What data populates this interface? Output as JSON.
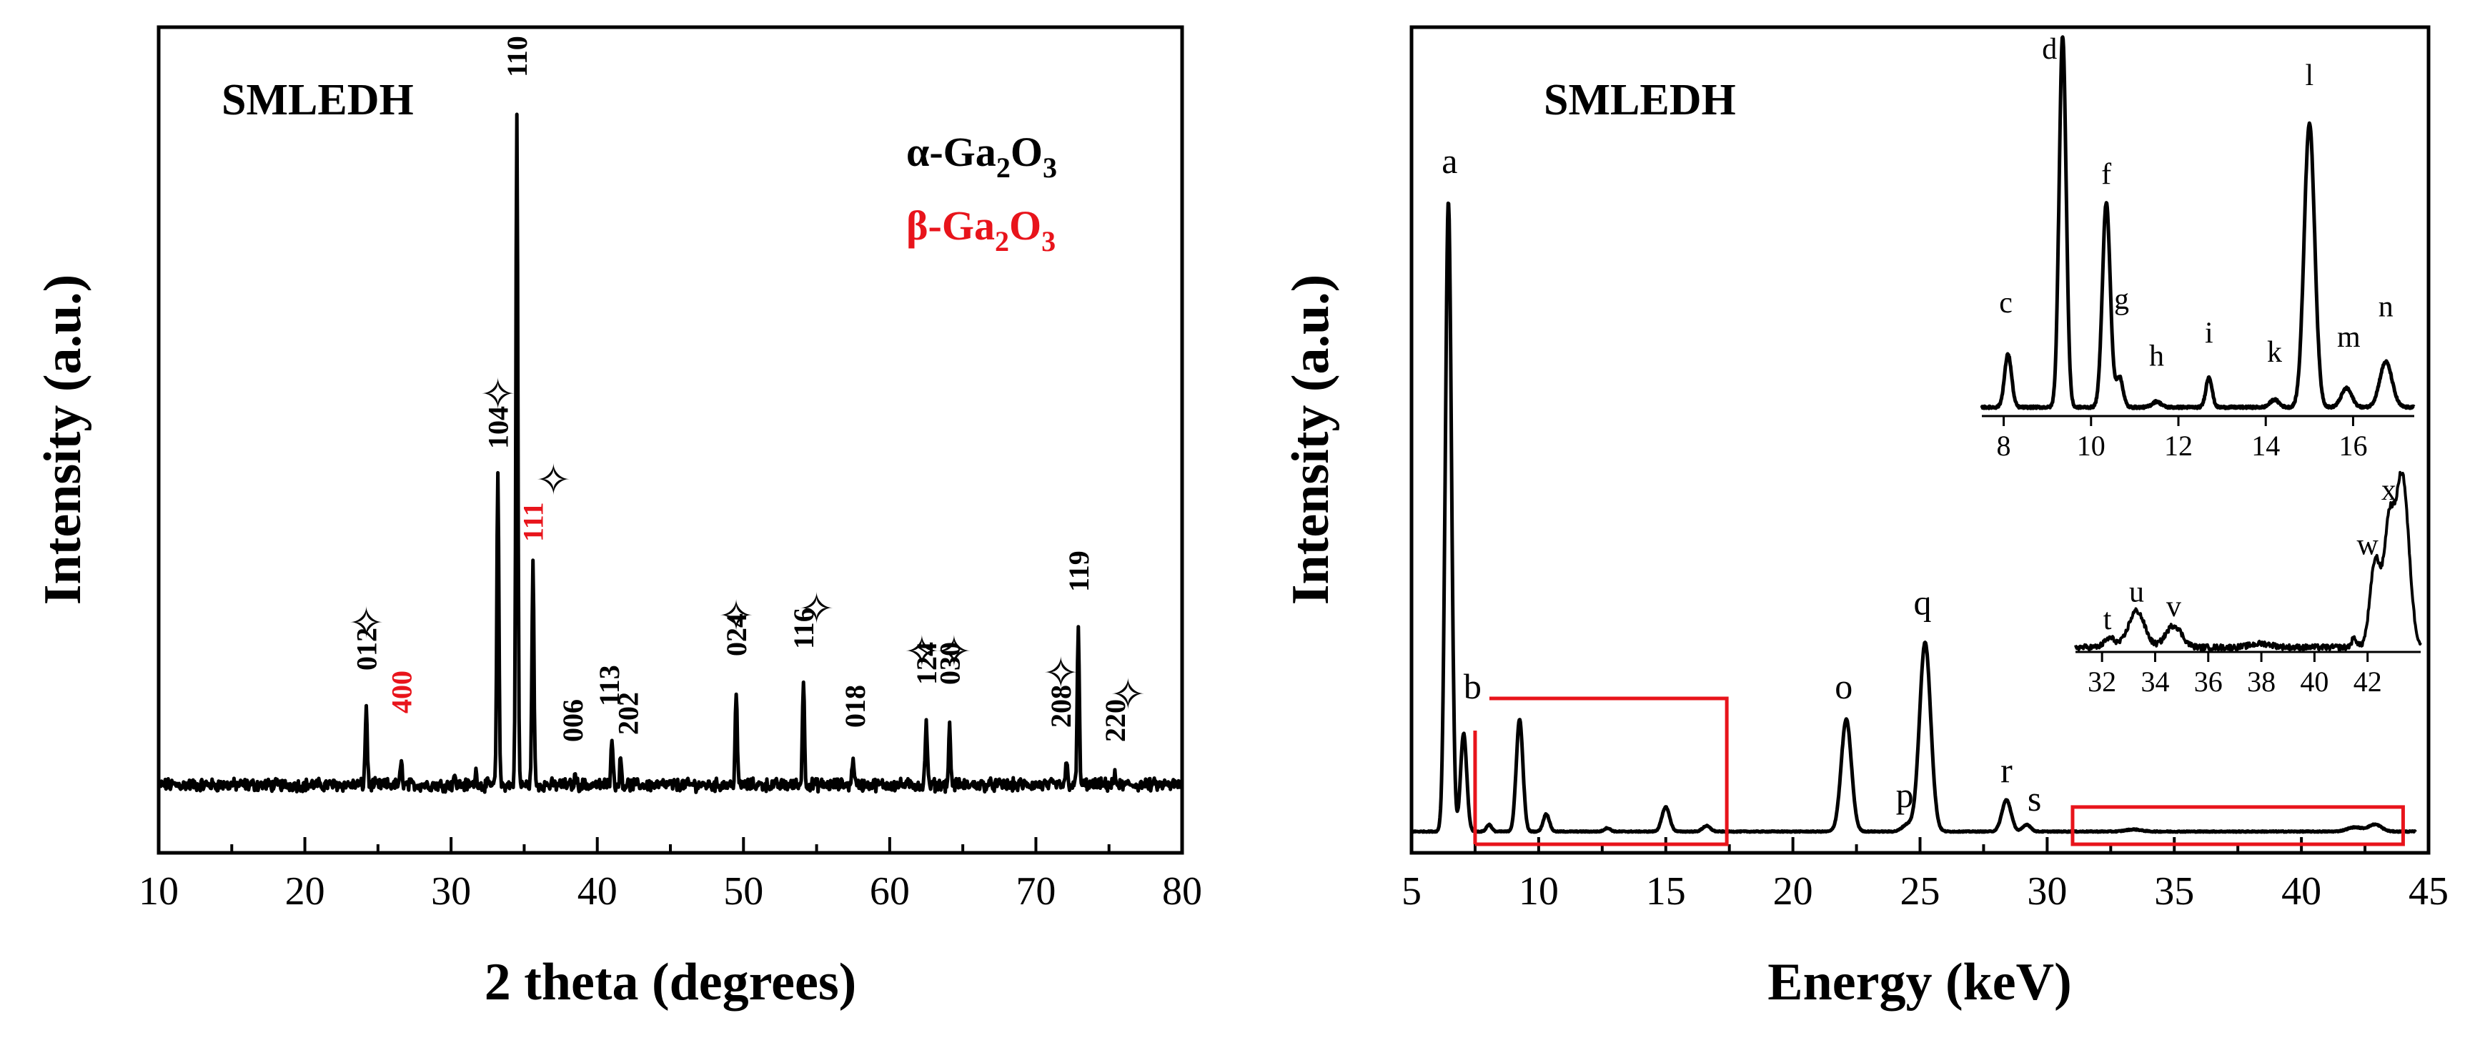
{
  "chart_data": [
    {
      "type": "line",
      "panel": "left",
      "title": "SMLEDH",
      "xlabel": "2 theta (degrees)",
      "ylabel": "Intensity (a.u.)",
      "xlim": [
        10,
        80
      ],
      "ylim": [
        0,
        1
      ],
      "xticks": [
        10,
        20,
        30,
        40,
        50,
        60,
        70,
        80
      ],
      "legend": {
        "position": "top-right",
        "entries": [
          {
            "name": "α-Ga2O3",
            "base": "α-Ga",
            "sub1": "2",
            "mid": "O",
            "sub2": "3",
            "color": "#000000"
          },
          {
            "name": "β-Ga2O3",
            "base": "β-Ga",
            "sub1": "2",
            "mid": "O",
            "sub2": "3",
            "color": "#e8141b"
          }
        ]
      },
      "baseline": 0.06,
      "noise": 0.007,
      "peaks": [
        {
          "x": 24.2,
          "h": 0.11
        },
        {
          "x": 26.6,
          "h": 0.03
        },
        {
          "x": 30.2,
          "h": 0.012
        },
        {
          "x": 31.7,
          "h": 0.018
        },
        {
          "x": 33.2,
          "h": 0.44
        },
        {
          "x": 34.5,
          "h": 0.94
        },
        {
          "x": 35.6,
          "h": 0.31
        },
        {
          "x": 38.5,
          "h": 0.012
        },
        {
          "x": 41.0,
          "h": 0.07
        },
        {
          "x": 41.6,
          "h": 0.035
        },
        {
          "x": 49.5,
          "h": 0.13
        },
        {
          "x": 54.1,
          "h": 0.145
        },
        {
          "x": 57.5,
          "h": 0.04
        },
        {
          "x": 62.5,
          "h": 0.09
        },
        {
          "x": 64.1,
          "h": 0.08
        },
        {
          "x": 72.1,
          "h": 0.03
        },
        {
          "x": 72.9,
          "h": 0.22
        },
        {
          "x": 75.4,
          "h": 0.012
        }
      ],
      "peak_labels": [
        {
          "text": "012",
          "x": 24.2,
          "y": 0.22,
          "color": "#000000"
        },
        {
          "text": "400",
          "x": 26.6,
          "y": 0.16,
          "color": "#e8141b"
        },
        {
          "text": "104",
          "x": 33.2,
          "y": 0.53,
          "color": "#000000"
        },
        {
          "text": "110",
          "x": 34.5,
          "y": 1.05,
          "color": "#000000"
        },
        {
          "text": "111",
          "x": 35.6,
          "y": 0.4,
          "color": "#e8141b"
        },
        {
          "text": "006",
          "x": 38.3,
          "y": 0.12,
          "color": "#000000"
        },
        {
          "text": "113",
          "x": 40.8,
          "y": 0.17,
          "color": "#000000"
        },
        {
          "text": "202",
          "x": 42.1,
          "y": 0.13,
          "color": "#000000"
        },
        {
          "text": "024",
          "x": 49.5,
          "y": 0.24,
          "color": "#000000"
        },
        {
          "text": "116",
          "x": 54.1,
          "y": 0.25,
          "color": "#000000"
        },
        {
          "text": "018",
          "x": 57.6,
          "y": 0.14,
          "color": "#000000"
        },
        {
          "text": "124",
          "x": 62.5,
          "y": 0.2,
          "color": "#000000"
        },
        {
          "text": "030",
          "x": 64.1,
          "y": 0.2,
          "color": "#000000"
        },
        {
          "text": "208",
          "x": 71.7,
          "y": 0.14,
          "color": "#000000"
        },
        {
          "text": "119",
          "x": 72.9,
          "y": 0.33,
          "color": "#000000"
        },
        {
          "text": "220",
          "x": 75.4,
          "y": 0.12,
          "color": "#000000"
        }
      ],
      "star_markers": [
        {
          "x": 24.2,
          "y": 0.28
        },
        {
          "x": 33.2,
          "y": 0.6
        },
        {
          "x": 37.0,
          "y": 0.48
        },
        {
          "x": 49.5,
          "y": 0.29
        },
        {
          "x": 55.0,
          "y": 0.3
        },
        {
          "x": 62.2,
          "y": 0.24
        },
        {
          "x": 64.4,
          "y": 0.24
        },
        {
          "x": 71.7,
          "y": 0.21
        },
        {
          "x": 76.3,
          "y": 0.18
        }
      ]
    },
    {
      "type": "line",
      "panel": "right",
      "title": "SMLEDH",
      "xlabel": "Energy (keV)",
      "ylabel": "Intensity (a.u.)",
      "xlim": [
        5,
        45
      ],
      "ylim": [
        0,
        1
      ],
      "xticks": [
        5,
        10,
        15,
        20,
        25,
        30,
        35,
        40,
        45
      ],
      "baseline": 0.01,
      "noise": 0.0015,
      "peaks": [
        {
          "x": 6.45,
          "h": 0.9,
          "w": 0.12
        },
        {
          "x": 7.05,
          "h": 0.14,
          "w": 0.12
        },
        {
          "x": 8.05,
          "h": 0.01,
          "w": 0.1
        },
        {
          "x": 9.25,
          "h": 0.16,
          "w": 0.13
        },
        {
          "x": 10.3,
          "h": 0.025,
          "w": 0.12
        },
        {
          "x": 12.7,
          "h": 0.005,
          "w": 0.12
        },
        {
          "x": 15.0,
          "h": 0.035,
          "w": 0.15
        },
        {
          "x": 16.6,
          "h": 0.008,
          "w": 0.15
        },
        {
          "x": 22.1,
          "h": 0.16,
          "w": 0.2
        },
        {
          "x": 24.5,
          "h": 0.01,
          "w": 0.2
        },
        {
          "x": 25.2,
          "h": 0.27,
          "w": 0.22
        },
        {
          "x": 28.4,
          "h": 0.045,
          "w": 0.18
        },
        {
          "x": 29.2,
          "h": 0.01,
          "w": 0.15
        },
        {
          "x": 33.4,
          "h": 0.003,
          "w": 0.3
        },
        {
          "x": 42.1,
          "h": 0.006,
          "w": 0.3
        },
        {
          "x": 42.9,
          "h": 0.01,
          "w": 0.25
        }
      ],
      "peak_labels": [
        {
          "text": "a",
          "x": 6.5,
          "y": 0.95
        },
        {
          "text": "b",
          "x": 7.4,
          "y": 0.2
        },
        {
          "text": "o",
          "x": 22.0,
          "y": 0.2
        },
        {
          "text": "p",
          "x": 24.4,
          "y": 0.045
        },
        {
          "text": "q",
          "x": 25.1,
          "y": 0.32
        },
        {
          "text": "r",
          "x": 28.4,
          "y": 0.08
        },
        {
          "text": "s",
          "x": 29.5,
          "y": 0.04
        }
      ],
      "zoom_boxes": [
        {
          "x0": 7.5,
          "x1": 17.4,
          "y0": 0.0,
          "y1": 0.2
        },
        {
          "x0": 31.0,
          "x1": 44.0,
          "y0": 0.0,
          "y1": 0.045
        }
      ],
      "insets": [
        {
          "type": "line",
          "xlim": [
            7.5,
            17.4
          ],
          "xticks": [
            8,
            10,
            12,
            14,
            16
          ],
          "peaks": [
            {
              "x": 8.1,
              "h": 0.14,
              "w": 0.08
            },
            {
              "x": 9.35,
              "h": 0.98,
              "w": 0.08
            },
            {
              "x": 10.35,
              "h": 0.54,
              "w": 0.09
            },
            {
              "x": 10.65,
              "h": 0.08,
              "w": 0.08
            },
            {
              "x": 11.5,
              "h": 0.015,
              "w": 0.1
            },
            {
              "x": 12.7,
              "h": 0.08,
              "w": 0.07
            },
            {
              "x": 14.2,
              "h": 0.02,
              "w": 0.1
            },
            {
              "x": 15.0,
              "h": 0.75,
              "w": 0.12
            },
            {
              "x": 15.85,
              "h": 0.05,
              "w": 0.12
            },
            {
              "x": 16.75,
              "h": 0.12,
              "w": 0.14
            }
          ],
          "peak_labels": [
            {
              "text": "c",
              "x": 8.05,
              "y": 0.26
            },
            {
              "text": "d",
              "x": 9.05,
              "y": 0.93
            },
            {
              "text": "f",
              "x": 10.35,
              "y": 0.6
            },
            {
              "text": "g",
              "x": 10.7,
              "y": 0.27
            },
            {
              "text": "h",
              "x": 11.5,
              "y": 0.12
            },
            {
              "text": "i",
              "x": 12.7,
              "y": 0.18
            },
            {
              "text": "k",
              "x": 14.2,
              "y": 0.13
            },
            {
              "text": "l",
              "x": 15.0,
              "y": 0.86
            },
            {
              "text": "m",
              "x": 15.9,
              "y": 0.17
            },
            {
              "text": "n",
              "x": 16.75,
              "y": 0.25
            }
          ]
        },
        {
          "type": "line",
          "xlim": [
            31.0,
            44.0
          ],
          "xticks": [
            32,
            34,
            36,
            38,
            40,
            42
          ],
          "peaks": [
            {
              "x": 32.3,
              "h": 0.05,
              "w": 0.2
            },
            {
              "x": 33.3,
              "h": 0.2,
              "w": 0.3
            },
            {
              "x": 34.7,
              "h": 0.12,
              "w": 0.3
            },
            {
              "x": 38.0,
              "h": 0.02,
              "w": 0.4
            },
            {
              "x": 41.5,
              "h": 0.05,
              "w": 0.1
            },
            {
              "x": 42.3,
              "h": 0.48,
              "w": 0.2
            },
            {
              "x": 42.8,
              "h": 0.6,
              "w": 0.18
            },
            {
              "x": 43.3,
              "h": 0.95,
              "w": 0.25
            }
          ],
          "peak_labels": [
            {
              "text": "t",
              "x": 32.2,
              "y": 0.11
            },
            {
              "text": "u",
              "x": 33.3,
              "y": 0.26
            },
            {
              "text": "v",
              "x": 34.7,
              "y": 0.18
            },
            {
              "text": "w",
              "x": 42.0,
              "y": 0.52
            },
            {
              "text": "x",
              "x": 42.8,
              "y": 0.82
            }
          ]
        }
      ]
    }
  ]
}
